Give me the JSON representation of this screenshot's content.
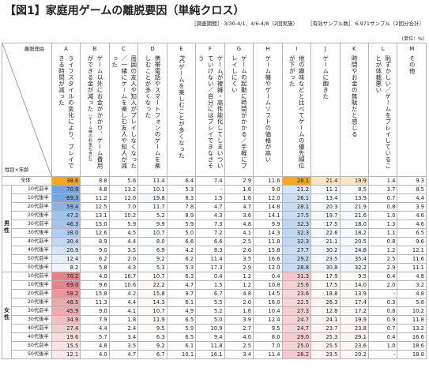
{
  "title": "【図1】家庭用ゲームの離脱要因（単純クロス）",
  "meta": {
    "period": "［調査期間］ 3/30-4/1、4/6-4/8（2回実施）",
    "sample": "［有効サンプル数］ 6,971サンプル（2回分合計）"
  },
  "unit": "(単位：%)",
  "corner": {
    "top": "離脱理由",
    "bottom": "性別×年齢"
  },
  "columns": [
    {
      "letter": "A",
      "text": "ライフスタイルの変化により、プレイできる時間が減った",
      "note": ""
    },
    {
      "letter": "B",
      "text": "ゲーム以外にお金がかかり、ゲーム費用ができる金が減った",
      "note": "（ゲーム機の料金も含む）"
    },
    {
      "letter": "C",
      "text": "周囲の友人や知人がプレイしなくなった／一緒にゲームを楽しむ友人や知人が減った",
      "note": ""
    },
    {
      "letter": "D",
      "text": "携帯電話やスマートフォンのゲームを楽しむことが多くなった",
      "note": ""
    },
    {
      "letter": "E",
      "text": "PCゲームを楽しむことが多くなった",
      "note": ""
    },
    {
      "letter": "F",
      "text": "ゲームが複雑・高性能化してしまいついていけない／自分にはプレイできなさそう",
      "note": ""
    },
    {
      "letter": "G",
      "text": "ゲームの起動に時間がかかる／手軽にプレイしにくい",
      "note": ""
    },
    {
      "letter": "H",
      "text": "ゲーム機やゲームソフトの価格が高い",
      "note": ""
    },
    {
      "letter": "I",
      "text": "他の趣味などと比べてゲームの優先順位が下がった",
      "note": ""
    },
    {
      "letter": "J",
      "text": "ゲームに飽きた",
      "note": ""
    },
    {
      "letter": "K",
      "text": "時間やお金の無駄だと感じる",
      "note": ""
    },
    {
      "letter": "L",
      "text": "恥ずかしい／ゲームをプレイしていることが体裁悪い",
      "note": ""
    },
    {
      "letter": "M",
      "text": "その他",
      "note": ""
    }
  ],
  "total": {
    "label": "全体",
    "values": [
      "38.6",
      "8.8",
      "5.6",
      "11.4",
      "6.4",
      "7.4",
      "2.9",
      "11.6",
      "28.1",
      "21.4",
      "19.9",
      "1.4",
      "9.3"
    ]
  },
  "groups": [
    {
      "gender": "男性",
      "rows": [
        {
          "label": "10代前半",
          "values": [
            "70.9",
            "4.8",
            "13.2",
            "10.1",
            "5.3",
            "-",
            "1.6",
            "9.0",
            "21.2",
            "11.1",
            "8.5",
            "3.7",
            "8.5"
          ]
        },
        {
          "label": "10代後半",
          "values": [
            "69.3",
            "11.2",
            "12.0",
            "19.8",
            "8.3",
            "1.5",
            "1.6",
            "12.0",
            "26.1",
            "13.4",
            "13.9",
            "0.7",
            "4.4"
          ]
        },
        {
          "label": "20代前半",
          "values": [
            "59.4",
            "12.5",
            "7.0",
            "11.7",
            "7.8",
            "4.7",
            "4.7",
            "14.8",
            "28.1",
            "20.3",
            "21.9",
            "0.8",
            "3.9"
          ]
        },
        {
          "label": "20代後半",
          "values": [
            "47.2",
            "13.1",
            "10.2",
            "5.2",
            "8.9",
            "4.3",
            "3.6",
            "14.1",
            "27.5",
            "19.7",
            "21.6",
            "1.0",
            "4.6"
          ]
        },
        {
          "label": "30代前半",
          "values": [
            "46.3",
            "15.0",
            "5.9",
            "9.9",
            "5.9",
            "7.3",
            "4.8",
            "9.9",
            "32.3",
            "17.5",
            "18.0",
            "1.3",
            "4.6"
          ]
        },
        {
          "label": "30代後半",
          "values": [
            "38.0",
            "12.6",
            "4.5",
            "10.7",
            "5.0",
            "7.2",
            "4.1",
            "14.3",
            "32.3",
            "22.6",
            "18.2",
            "1.1",
            "6.5"
          ]
        },
        {
          "label": "40代前半",
          "values": [
            "30.4",
            "8.9",
            "4.4",
            "8.0",
            "6.6",
            "6.6",
            "2.5",
            "11.8",
            "32.3",
            "21.1",
            "20.5",
            "0.8",
            "9.6"
          ]
        },
        {
          "label": "40代後半",
          "values": [
            "20.9",
            "9.0",
            "3.5",
            "6.9",
            "4.2",
            "8.3",
            "2.6",
            "15.8",
            "27.7",
            "30.2",
            "24.8",
            "1.2",
            "12.1"
          ]
        },
        {
          "label": "50代前半",
          "values": [
            "12.4",
            "6.2",
            "2.0",
            "9.2",
            "6.2",
            "11.4",
            "3.5",
            "16.6",
            "29.2",
            "23.5",
            "35.4",
            "2.5",
            "11.6"
          ]
        },
        {
          "label": "50代後半",
          "values": [
            "8.2",
            "5.8",
            "4.3",
            "5.3",
            "5.3",
            "17.3",
            "2.9",
            "12.0",
            "28.8",
            "30.8",
            "32.2",
            "2.9",
            "11.1"
          ]
        }
      ]
    },
    {
      "gender": "女性",
      "rows": [
        {
          "label": "10代前半",
          "values": [
            "70.2",
            "4.0",
            "16.7",
            "10.7",
            "6.3",
            "0.4",
            "1.2",
            "0.4",
            "31.3",
            "17.9",
            "9.5",
            "0.4",
            "4.8"
          ]
        },
        {
          "label": "10代後半",
          "values": [
            "69.0",
            "9.6",
            "10.6",
            "22.2",
            "4.7",
            "1.5",
            "1.2",
            "10.8",
            "25.6",
            "17.5",
            "14.0",
            "2.0",
            "3.2"
          ]
        },
        {
          "label": "20代前半",
          "values": [
            "58.2",
            "15.8",
            "4.2",
            "15.8",
            "9.7",
            "6.7",
            "4.8",
            "14.5",
            "23.6",
            "18.8",
            "13.9",
            "-",
            "4.8"
          ]
        },
        {
          "label": "20代後半",
          "values": [
            "48.5",
            "11.3",
            "4.4",
            "14.3",
            "6.1",
            "5.5",
            "2.0",
            "16.0",
            "22.5",
            "26.3",
            "17.4",
            "0.3",
            "5.8"
          ]
        },
        {
          "label": "30代前半",
          "values": [
            "45.9",
            "9.0",
            "4.1",
            "10.7",
            "4.9",
            "5.2",
            "1.6",
            "10.4",
            "27.3",
            "12.8",
            "17.2",
            "0.8",
            "10.2"
          ]
        },
        {
          "label": "30代後半",
          "values": [
            "34.9",
            "7.9",
            "1.8",
            "11.9",
            "6.5",
            "5.0",
            "3.9",
            "12.4",
            "24.7",
            "24.1",
            "19.9",
            "0.9",
            "11.8"
          ]
        },
        {
          "label": "40代前半",
          "values": [
            "27.4",
            "4.4",
            "2.4",
            "9.5",
            "5.9",
            "10.9",
            "2.7",
            "9.5",
            "24.7",
            "23.7",
            "23.8",
            "0.7",
            "13.2"
          ]
        },
        {
          "label": "40代後半",
          "values": [
            "19.6",
            "5.7",
            "3.4",
            "6.3",
            "6.5",
            "9.4",
            "4.0",
            "8.0",
            "29.0",
            "25.3",
            "29.1",
            "0.4",
            "16.6"
          ]
        },
        {
          "label": "50代前半",
          "values": [
            "15.5",
            "4.8",
            "3.5",
            "9.2",
            "6.1",
            "11.8",
            "2.5",
            "7.0",
            "25.0",
            "25.5",
            "23.6",
            "1.0",
            "18.6"
          ]
        },
        {
          "label": "50代後半",
          "values": [
            "12.1",
            "4.0",
            "4.7",
            "6.7",
            "10.1",
            "16.1",
            "3.4",
            "11.4",
            "28.2",
            "23.5",
            "20.2",
            "-",
            "18.8"
          ]
        }
      ]
    }
  ],
  "colors": {
    "male_max": "#3f7fd1",
    "male_min": "#eef4fb",
    "female_max": "#d94b55",
    "female_min": "#fcefee",
    "total_highlight": "#f5a623",
    "total_sub": "#fce6c2",
    "separator": "#888888"
  }
}
